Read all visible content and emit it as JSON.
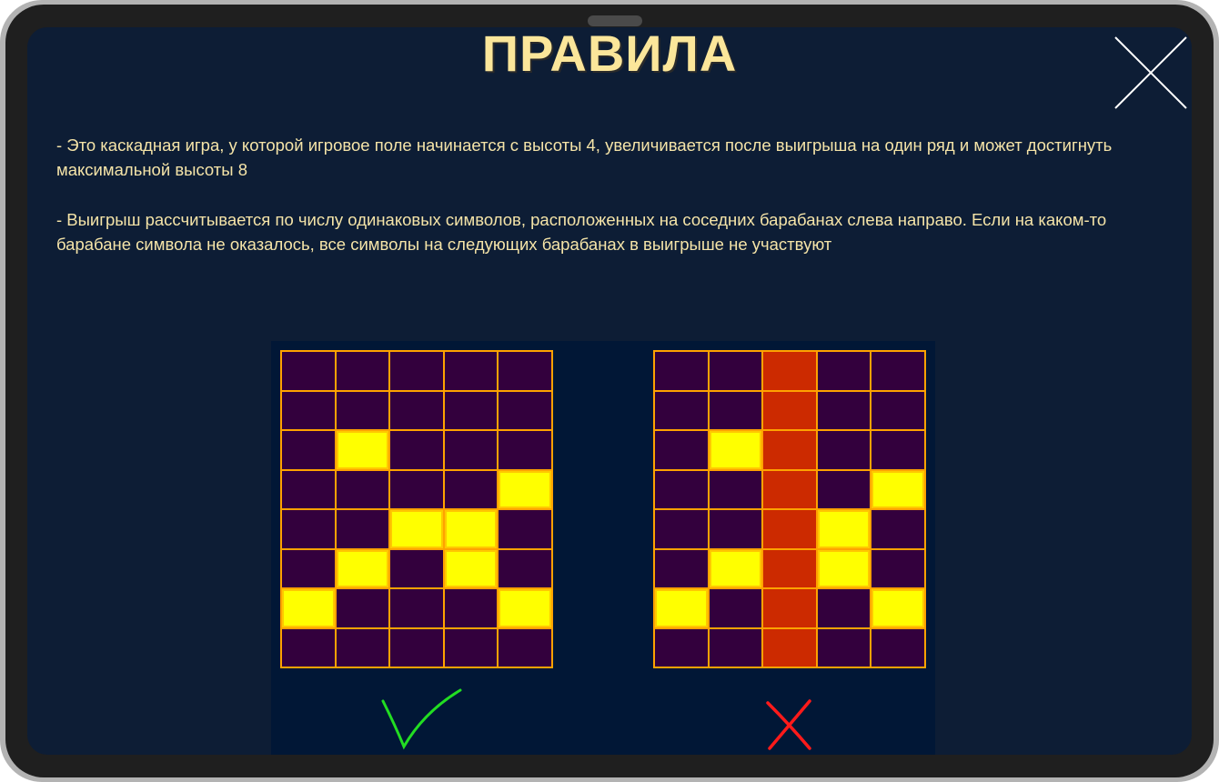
{
  "title": "ПРАВИЛА",
  "close_icon": "close-x-icon",
  "paragraphs": [
    "- Это каскадная игра, у которой игровое поле начинается с высоты 4, увеличивается после выигрыша на один ряд и может достигнуть максимальной высоты 8",
    "- Выигрыш рассчитывается по числу одинаковых символов, расположенных на соседних барабанах слева направо. Если на каком-то барабане символа не оказалось, все символы на следующих барабанах в выигрыше не участвуют"
  ],
  "colors": {
    "background": "#0d1d35",
    "title": "#fbe69a",
    "text": "#f5e4a8",
    "cell": "#33003d",
    "symbol": "#ffff00",
    "missing_reel": "#cc2a00",
    "grid_line": "#ffa200",
    "correct": "#22dd22",
    "wrong": "#ff1a1a"
  },
  "examples": [
    {
      "result": "correct",
      "icon": "checkmark-icon",
      "rows": [
        "-----",
        "-----",
        "-Y---",
        "----Y",
        "--YY-",
        "-Y-Y-",
        "Y---Y",
        "-----"
      ]
    },
    {
      "result": "wrong",
      "icon": "cross-icon",
      "rows": [
        "--R--",
        "--R--",
        "-YR--",
        "--R-Y",
        "--RY-",
        "-YRY-",
        "Y-R-Y",
        "--R--"
      ]
    }
  ]
}
